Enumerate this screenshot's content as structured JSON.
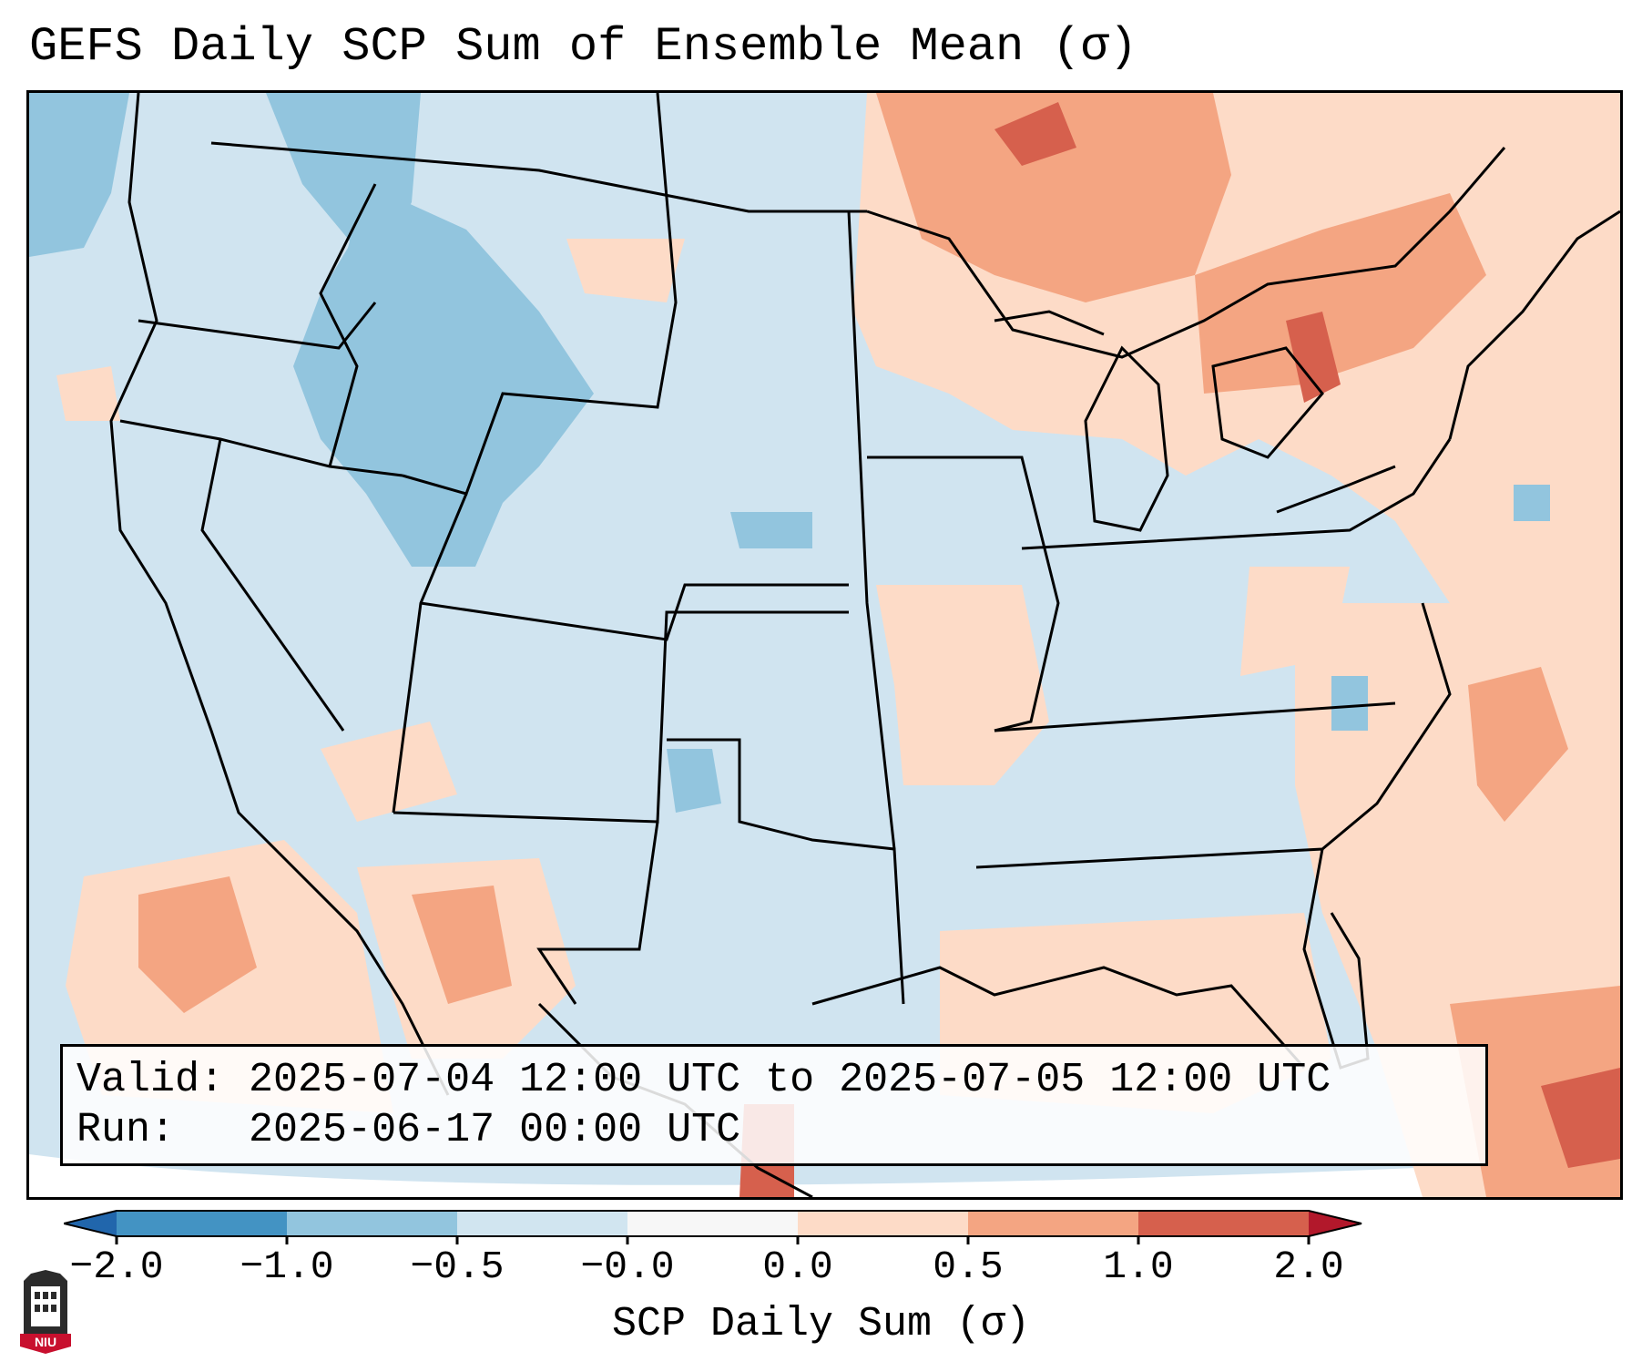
{
  "title": "GEFS Daily SCP Sum of Ensemble Mean (σ)",
  "info": {
    "valid_label": "Valid:",
    "valid_value": "2025-07-04 12:00 UTC to 2025-07-05 12:00 UTC",
    "run_label": "Run:",
    "run_value": "2025-06-17 00:00 UTC"
  },
  "colorbar": {
    "label": "SCP Daily Sum (σ)",
    "ticks": [
      "−2.0",
      "−1.0",
      "−0.5",
      "−0.0",
      "0.0",
      "0.5",
      "1.0",
      "2.0"
    ],
    "bins": [
      {
        "range": "< -2.0",
        "color": "#2166ac"
      },
      {
        "range": "-2.0 to -1.0",
        "color": "#4393c3"
      },
      {
        "range": "-1.0 to -0.5",
        "color": "#92c5de"
      },
      {
        "range": "-0.5 to -0.0",
        "color": "#d1e5f0"
      },
      {
        "range": "-0.0 to 0.0",
        "color": "#f7f7f7"
      },
      {
        "range": "0.0 to 0.5",
        "color": "#fddbc7"
      },
      {
        "range": "0.5 to 1.0",
        "color": "#f4a582"
      },
      {
        "range": "1.0 to 2.0",
        "color": "#d6604d"
      },
      {
        "range": "> 2.0",
        "color": "#b2182b"
      }
    ]
  },
  "logo": {
    "text": "NIU"
  },
  "colors": {
    "background": "#d1e5f0",
    "positive_light": "#fddbc7",
    "positive_mid": "#f4a582",
    "positive_dark": "#d6604d",
    "positive_max": "#b2182b",
    "negative_mid": "#92c5de",
    "negative_dark": "#4393c3"
  }
}
